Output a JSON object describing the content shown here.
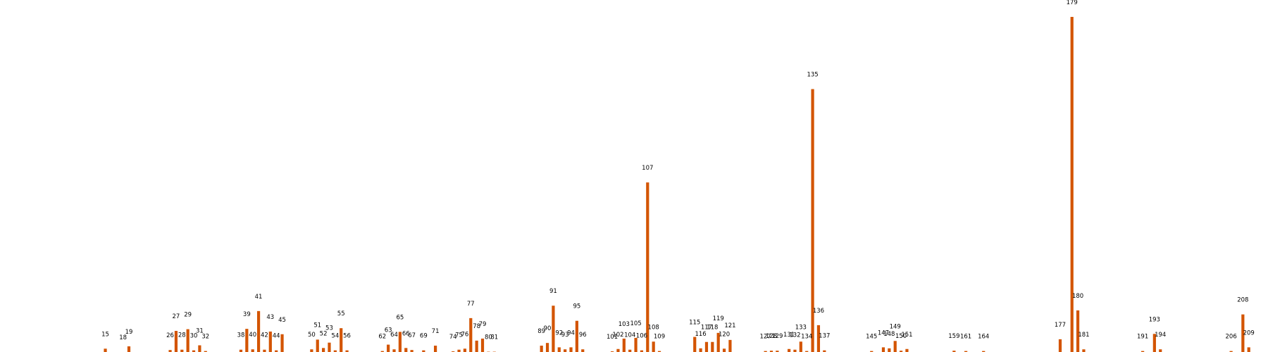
{
  "chart_data": {
    "type": "bar",
    "title": "",
    "xlabel": "",
    "ylabel": "",
    "grid": false,
    "legend": "none",
    "bar_color": "#d35400",
    "ylim": [
      0,
      100
    ],
    "x": [
      15,
      18,
      19,
      26,
      27,
      28,
      29,
      30,
      31,
      32,
      38,
      39,
      40,
      41,
      42,
      43,
      44,
      45,
      50,
      51,
      52,
      53,
      54,
      55,
      56,
      62,
      63,
      64,
      65,
      66,
      67,
      69,
      71,
      74,
      75,
      76,
      77,
      78,
      79,
      80,
      81,
      89,
      90,
      91,
      92,
      93,
      94,
      95,
      96,
      101,
      102,
      103,
      104,
      105,
      106,
      107,
      108,
      109,
      115,
      116,
      117,
      118,
      119,
      120,
      121,
      127,
      128,
      129,
      131,
      132,
      133,
      134,
      135,
      136,
      137,
      145,
      147,
      148,
      149,
      150,
      151,
      159,
      161,
      164,
      177,
      179,
      180,
      181,
      191,
      193,
      194,
      206,
      208,
      209
    ],
    "values": [
      1.2,
      0.2,
      1.9,
      0.8,
      6.5,
      0.9,
      7.0,
      0.7,
      2.2,
      0.5,
      0.9,
      7.1,
      1.0,
      12.4,
      0.9,
      6.3,
      0.7,
      5.5,
      1.0,
      3.9,
      1.4,
      3.0,
      0.7,
      7.3,
      0.7,
      0.5,
      2.4,
      1.0,
      6.2,
      1.4,
      0.8,
      0.7,
      2.1,
      0.4,
      0.9,
      1.2,
      10.3,
      3.6,
      4.2,
      0.3,
      0.3,
      2.1,
      2.9,
      14.0,
      1.6,
      1.0,
      1.6,
      9.5,
      1.0,
      0.4,
      1.1,
      4.2,
      0.9,
      4.4,
      0.7,
      50.7,
      3.3,
      0.5,
      4.7,
      1.3,
      3.2,
      3.2,
      5.9,
      1.2,
      3.8,
      0.5,
      0.6,
      0.6,
      1.1,
      0.9,
      3.3,
      0.5,
      78.5,
      8.2,
      0.7,
      0.5,
      1.6,
      1.3,
      3.5,
      0.6,
      1.1,
      0.6,
      0.5,
      0.5,
      4.0,
      100,
      12.6,
      1.0,
      0.5,
      5.6,
      1.0,
      0.5,
      11.4,
      1.6
    ],
    "data_labels": [
      "15",
      "18",
      "19",
      "26",
      "27",
      "28",
      "29",
      "30",
      "31",
      "32",
      "38",
      "39",
      "40",
      "41",
      "42",
      "43",
      "44",
      "45",
      "50",
      "51",
      "52",
      "53",
      "54",
      "55",
      "56",
      "62",
      "63",
      "64",
      "65",
      "66",
      "67",
      "69",
      "71",
      "74",
      "75",
      "76",
      "77",
      "78",
      "79",
      "80",
      "81",
      "89",
      "90",
      "91",
      "92",
      "93",
      "94",
      "95",
      "96",
      "101",
      "102",
      "103",
      "104",
      "105",
      "106",
      "107",
      "108",
      "109",
      "115",
      "116",
      "117",
      "118",
      "119",
      "120",
      "121",
      "127",
      "128",
      "129",
      "131",
      "132",
      "133",
      "134",
      "135",
      "136",
      "137",
      "145",
      "147",
      "148",
      "149",
      "150",
      "151",
      "159",
      "161",
      "164",
      "177",
      "179",
      "180",
      "181",
      "191",
      "193",
      "194",
      "206",
      "208",
      "209"
    ]
  }
}
